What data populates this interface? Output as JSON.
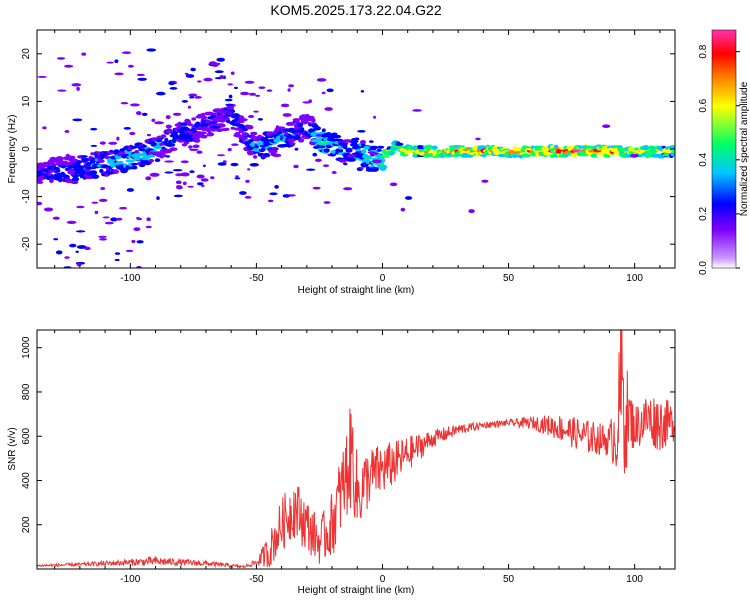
{
  "title": "KOM5.2025.173.22.04.G22",
  "colors": {
    "snr_line": "#ee3333",
    "frame": "#000000",
    "colormap": [
      "#ffffff",
      "#cc99ff",
      "#7f00ff",
      "#0000ff",
      "#00c8ff",
      "#00ff66",
      "#ffff00",
      "#ff8000",
      "#ff0000",
      "#ff33aa"
    ]
  },
  "chart_data": [
    {
      "type": "heatmap",
      "name": "spectrogram",
      "xlabel": "Height of straight line (km)",
      "ylabel": "Frequency (Hz)",
      "xlim": [
        -137,
        116
      ],
      "ylim": [
        -25,
        25
      ],
      "xticks": [
        -100,
        -50,
        0,
        50,
        100
      ],
      "yticks": [
        -20,
        -10,
        0,
        10,
        20
      ],
      "colorbar": {
        "label": "Normalized spectral amplitude",
        "range": [
          0,
          0.88
        ],
        "ticks": [
          0.0,
          0.2,
          0.4,
          0.6,
          0.8
        ],
        "colormap": "rainbow"
      },
      "ridge": {
        "x": [
          -137,
          -120,
          -100,
          -90,
          -80,
          -70,
          -60,
          -50,
          -40,
          -30,
          -25,
          -20,
          -15,
          -10,
          -5,
          0,
          5,
          10,
          20,
          40,
          60,
          80,
          100,
          116
        ],
        "y": [
          -5,
          -4,
          -2,
          0,
          3,
          5,
          7,
          0,
          2,
          5,
          2,
          1,
          -1,
          0,
          -2,
          -2,
          0.5,
          -0.5,
          -0.5,
          -0.5,
          -0.5,
          -0.5,
          -0.5,
          -0.5
        ],
        "amplitude": [
          0.2,
          0.25,
          0.35,
          0.3,
          0.25,
          0.2,
          0.2,
          0.3,
          0.3,
          0.2,
          0.4,
          0.35,
          0.3,
          0.35,
          0.4,
          0.5,
          0.6,
          0.65,
          0.7,
          0.75,
          0.75,
          0.85,
          0.7,
          0.55
        ]
      }
    },
    {
      "type": "line",
      "name": "snr",
      "xlabel": "Height of straight line (km)",
      "ylabel": "SNR (v/v)",
      "xlim": [
        -137,
        116
      ],
      "ylim": [
        0,
        1080
      ],
      "xticks": [
        -100,
        -50,
        0,
        50,
        100
      ],
      "yticks": [
        200,
        400,
        600,
        800,
        1000
      ],
      "series": [
        {
          "envelope_x": [
            -137,
            -120,
            -100,
            -90,
            -80,
            -70,
            -60,
            -55,
            -50,
            -45,
            -40,
            -35,
            -30,
            -25,
            -20,
            -15,
            -12,
            -10,
            -5,
            0,
            5,
            10,
            20,
            30,
            40,
            50,
            60,
            70,
            80,
            90,
            93,
            95,
            96,
            98,
            100,
            105,
            110,
            116
          ],
          "envelope_y": [
            15,
            20,
            30,
            35,
            30,
            25,
            15,
            10,
            30,
            80,
            200,
            280,
            200,
            120,
            200,
            400,
            530,
            330,
            420,
            450,
            480,
            520,
            590,
            630,
            650,
            660,
            660,
            640,
            600,
            580,
            620,
            850,
            700,
            680,
            640,
            680,
            660,
            660
          ],
          "noise": [
            5,
            8,
            15,
            20,
            15,
            12,
            8,
            5,
            15,
            80,
            120,
            140,
            120,
            100,
            150,
            200,
            250,
            180,
            130,
            120,
            100,
            80,
            40,
            25,
            15,
            15,
            30,
            60,
            80,
            70,
            200,
            400,
            300,
            150,
            100,
            120,
            130,
            80
          ]
        }
      ]
    }
  ]
}
